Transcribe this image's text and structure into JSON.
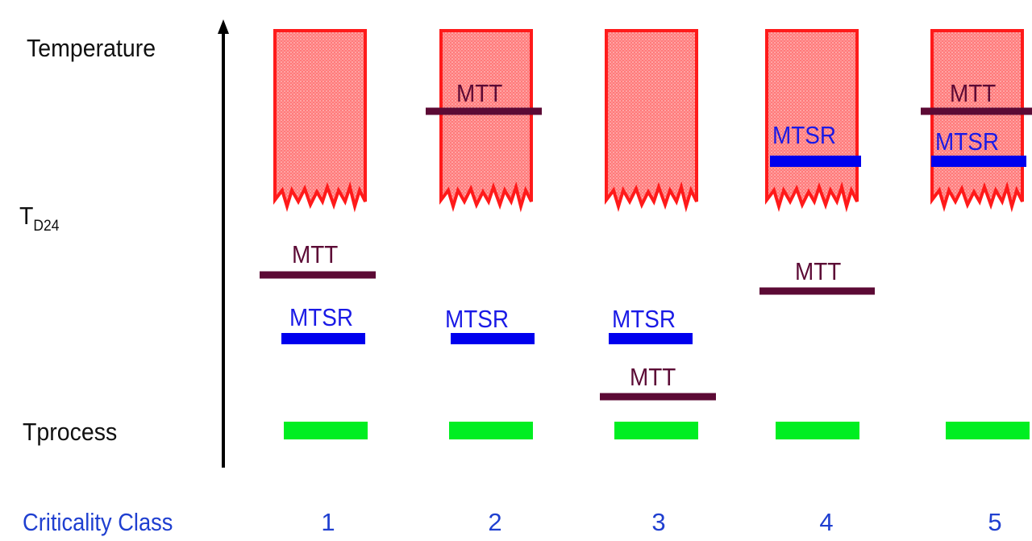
{
  "labels": {
    "temperature": "Temperature",
    "td24_main": "T",
    "td24_sub": "D24",
    "tprocess": "Tprocess",
    "criticality_class": "Criticality Class"
  },
  "marker_labels": {
    "mtt": "MTT",
    "mtsr": "MTSR"
  },
  "classes": [
    {
      "number": "1"
    },
    {
      "number": "2"
    },
    {
      "number": "3"
    },
    {
      "number": "4"
    },
    {
      "number": "5"
    }
  ],
  "colors": {
    "mtt": "#5c0a35",
    "mtsr": "#0000ee",
    "tprocess": "#00ee22",
    "decomposition_fill": "#ff6b6b",
    "decomposition_edge": "#ff1a1a",
    "class_text": "#1f3fd0"
  }
}
